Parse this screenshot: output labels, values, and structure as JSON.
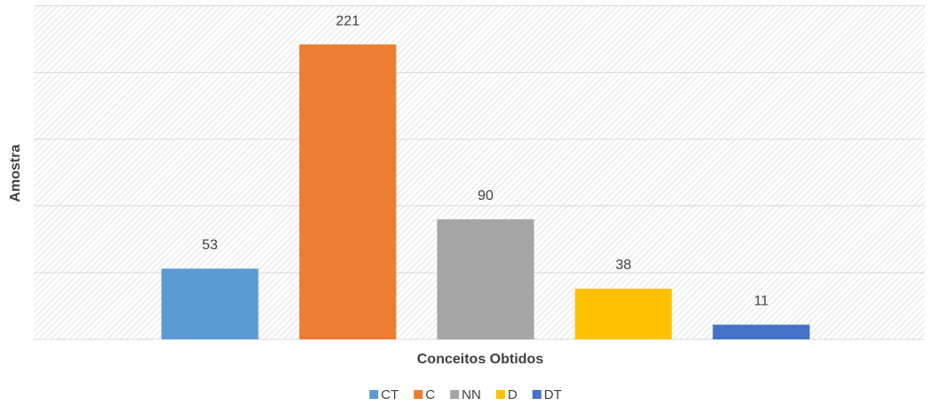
{
  "chart_data": {
    "type": "bar",
    "categories": [
      "CT",
      "C",
      "NN",
      "D",
      "DT"
    ],
    "values": [
      53,
      221,
      90,
      38,
      11
    ],
    "colors": [
      "#5b9bd5",
      "#ed7d31",
      "#a5a5a5",
      "#ffc000",
      "#4472c4"
    ],
    "x_label": "Conceitos Obtidos",
    "y_label": "Amostra",
    "ylim": [
      0,
      250
    ],
    "yticks": [
      0,
      50,
      100,
      150,
      200,
      250
    ],
    "grid": true,
    "legend": "bottom"
  }
}
